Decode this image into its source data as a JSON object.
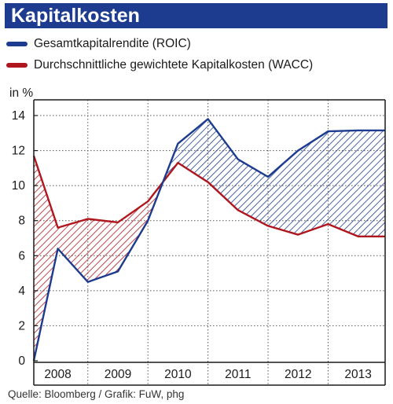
{
  "header": {
    "title": "Kapitalkosten"
  },
  "legend": [
    {
      "label": "Gesamtkapitalrendite (ROIC)",
      "color": "#1d3b8f"
    },
    {
      "label": "Durchschnittliche gewichtete Kapitalkosten (WACC)",
      "color": "#b0161e"
    }
  ],
  "unit_label": "in %",
  "source": "Quelle: Bloomberg / Grafik: FuW, phg",
  "chart_data": {
    "type": "line",
    "title": "Kapitalkosten",
    "ylabel": "in %",
    "ylim": [
      0,
      15
    ],
    "y_ticks": [
      0,
      2,
      4,
      6,
      8,
      10,
      12,
      14
    ],
    "x_ticks": [
      "2008",
      "2009",
      "2010",
      "2011",
      "2012",
      "2013"
    ],
    "grid": true,
    "legend_position": "top",
    "series": [
      {
        "name": "Gesamtkapitalrendite (ROIC)",
        "color": "#1d3b8f",
        "x": [
          2007.6,
          2008.0,
          2008.5,
          2009.0,
          2009.5,
          2010.0,
          2010.5,
          2011.0,
          2011.5,
          2012.0,
          2012.5,
          2013.0,
          2013.45
        ],
        "values": [
          0.0,
          6.4,
          4.5,
          5.1,
          8.0,
          12.4,
          13.8,
          11.5,
          10.5,
          12.0,
          13.1,
          13.15,
          13.15
        ]
      },
      {
        "name": "Durchschnittliche gewichtete Kapitalkosten (WACC)",
        "color": "#b0161e",
        "x": [
          2007.6,
          2008.0,
          2008.5,
          2009.0,
          2009.5,
          2010.0,
          2010.5,
          2011.0,
          2011.5,
          2012.0,
          2012.5,
          2013.0,
          2013.45
        ],
        "values": [
          11.7,
          7.6,
          8.1,
          7.9,
          9.1,
          11.3,
          10.2,
          8.6,
          7.7,
          7.2,
          7.8,
          7.1,
          7.1
        ]
      }
    ]
  }
}
